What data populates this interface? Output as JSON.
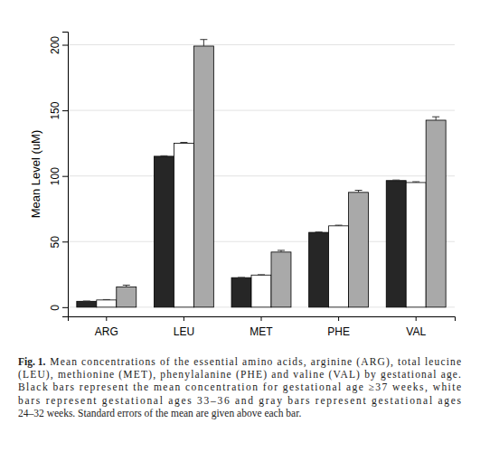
{
  "chart_data": {
    "type": "bar",
    "y_label": "Mean Level (uM)",
    "categories": [
      "ARG",
      "LEU",
      "MET",
      "PHE",
      "VAL"
    ],
    "series": [
      {
        "color": "#262626",
        "values": [
          4.5,
          115,
          22.5,
          57,
          96.5
        ],
        "errors": [
          0.2,
          0.4,
          0.15,
          0.3,
          0.4
        ]
      },
      {
        "color": "#ffffff",
        "values": [
          5.5,
          125,
          24.5,
          62,
          95
        ],
        "errors": [
          0.3,
          0.6,
          0.25,
          0.5,
          0.6
        ]
      },
      {
        "color": "#a9a9a9",
        "values": [
          15.5,
          199,
          42,
          87.5,
          142.5
        ],
        "errors": [
          1.3,
          5,
          1.3,
          1.6,
          2.6
        ]
      }
    ],
    "ylim": [
      -7,
      210
    ],
    "yticks": [
      0,
      50,
      100,
      150,
      200
    ],
    "grid": true,
    "caption": {
      "label": "Fig. 1.",
      "lines": [
        "Mean concentrations of the essential amino acids, arginine (ARG), total leucine",
        "(LEU), methionine (MET), phenylalanine (PHE) and valine (VAL) by gestational age.",
        "Black bars represent the mean concentration for gestational age ≥37 weeks, white",
        "bars represent gestational ages 33–36 and gray bars represent gestational ages",
        "24–32 weeks. Standard errors of the mean are given above each bar."
      ]
    }
  }
}
